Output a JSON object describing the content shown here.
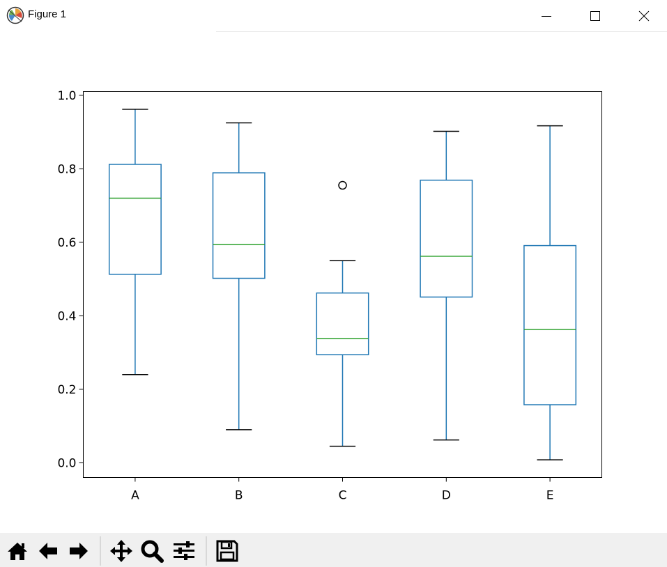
{
  "window": {
    "title": "Figure 1",
    "icons": [
      "matplotlib-logo-icon",
      "minimize-icon",
      "maximize-icon",
      "close-icon"
    ]
  },
  "toolbar": {
    "buttons": [
      "home-icon",
      "back-icon",
      "forward-icon",
      "pan-icon",
      "zoom-icon",
      "configure-subplots-icon",
      "save-icon"
    ]
  },
  "colors": {
    "box": "#1f77b4",
    "median": "#2ca02c",
    "axes": "#000000",
    "toolbar_bg": "#f0f0f0"
  },
  "chart_data": {
    "type": "box",
    "categories": [
      "A",
      "B",
      "C",
      "D",
      "E"
    ],
    "ylim": [
      -0.04,
      1.01
    ],
    "yticks": [
      0.0,
      0.2,
      0.4,
      0.6,
      0.8,
      1.0
    ],
    "ytick_labels": [
      "0.0",
      "0.2",
      "0.4",
      "0.6",
      "0.8",
      "1.0"
    ],
    "grid": false,
    "boxes": [
      {
        "category": "A",
        "whisker_low": 0.24,
        "q1": 0.513,
        "median": 0.72,
        "q3": 0.812,
        "whisker_high": 0.962,
        "outliers": []
      },
      {
        "category": "B",
        "whisker_low": 0.09,
        "q1": 0.502,
        "median": 0.594,
        "q3": 0.789,
        "whisker_high": 0.925,
        "outliers": []
      },
      {
        "category": "C",
        "whisker_low": 0.045,
        "q1": 0.294,
        "median": 0.338,
        "q3": 0.462,
        "whisker_high": 0.55,
        "outliers": [
          0.755
        ]
      },
      {
        "category": "D",
        "whisker_low": 0.062,
        "q1": 0.451,
        "median": 0.562,
        "q3": 0.769,
        "whisker_high": 0.902,
        "outliers": []
      },
      {
        "category": "E",
        "whisker_low": 0.008,
        "q1": 0.158,
        "median": 0.363,
        "q3": 0.591,
        "whisker_high": 0.917,
        "outliers": []
      }
    ]
  }
}
